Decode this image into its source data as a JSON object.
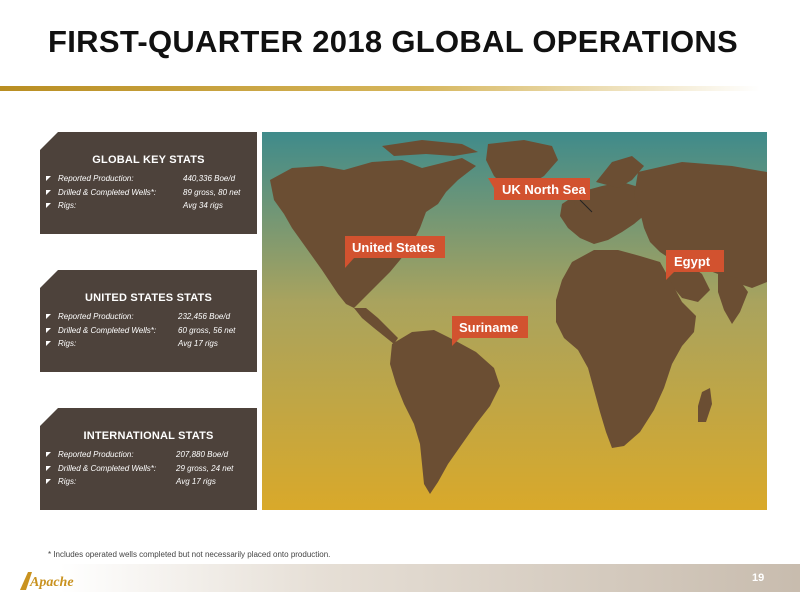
{
  "title": "FIRST-QUARTER 2018 GLOBAL OPERATIONS",
  "panels": [
    {
      "heading": "GLOBAL KEY STATS",
      "rows": [
        {
          "label": "Reported Production:",
          "value": "440,336 Boe/d"
        },
        {
          "label": "Drilled & Completed Wells*:",
          "value": "89 gross, 80 net"
        },
        {
          "label": "Rigs:",
          "value": "Avg 34 rigs"
        }
      ]
    },
    {
      "heading": "UNITED STATES STATS",
      "rows": [
        {
          "label": "Reported Production:",
          "value": "232,456 Boe/d"
        },
        {
          "label": "Drilled & Completed Wells*:",
          "value": "60 gross, 56 net"
        },
        {
          "label": "Rigs:",
          "value": "Avg 17 rigs"
        }
      ]
    },
    {
      "heading": "INTERNATIONAL STATS",
      "rows": [
        {
          "label": "Reported Production:",
          "value": "207,880 Boe/d"
        },
        {
          "label": "Drilled & Completed Wells*:",
          "value": "29 gross, 24 net"
        },
        {
          "label": "Rigs:",
          "value": "Avg 17 rigs"
        }
      ]
    }
  ],
  "map": {
    "callouts": {
      "uk": "UK North Sea",
      "us": "United States",
      "egypt": "Egypt",
      "suriname": "Suriname"
    },
    "colors": {
      "callout": "#d2522f",
      "land": "#6b4e33",
      "ocean_top": "#3f8b8b",
      "ocean_bottom": "#d9a92a"
    }
  },
  "footnote": "* Includes operated wells completed but not necessarily placed onto production.",
  "logo_text": "Apache",
  "page_number": "19"
}
